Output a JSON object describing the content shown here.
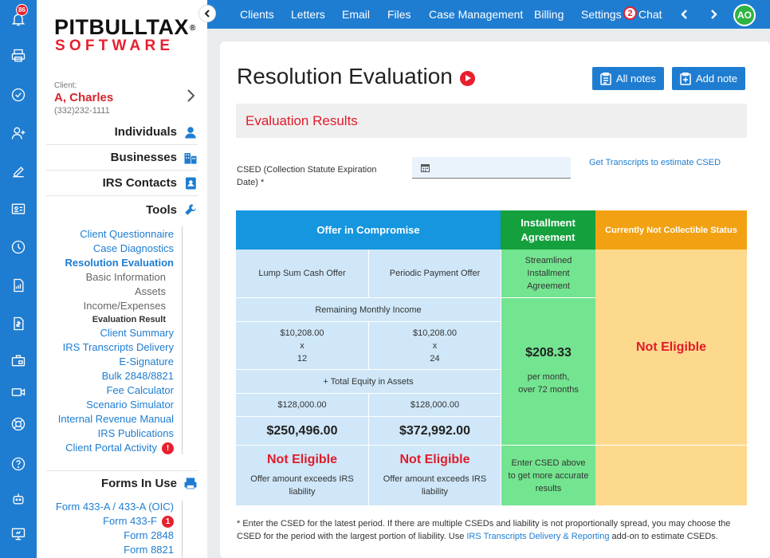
{
  "rail": {
    "notification_count": "86",
    "icons": [
      "bell-icon",
      "printer-icon",
      "check-circle-icon",
      "add-user-icon",
      "pencil-icon",
      "id-card-icon",
      "clock-icon",
      "document-chart-icon",
      "invoice-icon",
      "briefcase-lock-icon",
      "video-icon",
      "lifebuoy-icon",
      "help-icon",
      "robot-icon",
      "monitor-icon"
    ]
  },
  "logo": {
    "line1": "PITBULLTAX",
    "reg": "®",
    "line2": "SOFTWARE"
  },
  "client": {
    "caption": "Client:",
    "name": "A, Charles",
    "phone": "(332)232-1111"
  },
  "sections": {
    "individuals": "Individuals",
    "businesses": "Businesses",
    "irs_contacts": "IRS Contacts",
    "tools": "Tools",
    "forms_in_use": "Forms In Use"
  },
  "tools": [
    "Client Questionnaire",
    "Case Diagnostics",
    "Resolution Evaluation",
    "Basic Information",
    "Assets",
    "Income/Expenses",
    "Evaluation Result",
    "Client Summary",
    "IRS Transcripts Delivery",
    "E-Signature",
    "Bulk 2848/8821",
    "Fee Calculator",
    "Scenario Simulator",
    "Internal Revenue Manual",
    "IRS Publications",
    "Client Portal Activity"
  ],
  "client_portal_alert": "!",
  "forms": [
    "Form 433-A / 433-A (OIC)",
    "Form 433-F",
    "Form 2848",
    "Form 8821"
  ],
  "form_433f_badge": "1",
  "topnav": {
    "items": [
      "Clients",
      "Letters",
      "Email",
      "Files",
      "Case Management",
      "Billing",
      "Settings",
      "Chat"
    ],
    "chat_badge": "2",
    "avatar": "AO"
  },
  "page": {
    "title": "Resolution Evaluation",
    "all_notes": "All notes",
    "add_note": "Add note",
    "section_title": "Evaluation Results",
    "csed_label": "CSED (Collection Statute Expiration Date) *",
    "csed_value": "",
    "csed_link": "Get Transcripts to estimate CSED"
  },
  "evaluation": {
    "headers": {
      "oic": "Offer in Compromise",
      "ia": "Installment Agreement",
      "cnc": "Currently Not Collectible Status"
    },
    "oic": {
      "lump_sum": "Lump Sum Cash Offer",
      "periodic": "Periodic Payment Offer",
      "remaining_income": "Remaining Monthly Income",
      "lump_income": "$10,208.00",
      "lump_x": "x",
      "lump_months": "12",
      "periodic_income": "$10,208.00",
      "periodic_x": "x",
      "periodic_months": "24",
      "total_equity": "+ Total Equity in Assets",
      "lump_equity": "$128,000.00",
      "periodic_equity": "$128,000.00",
      "lump_total": "$250,496.00",
      "periodic_total": "$372,992.00",
      "lump_status": "Not Eligible",
      "periodic_status": "Not Eligible",
      "lump_reason": "Offer amount exceeds IRS liability",
      "periodic_reason": "Offer amount exceeds IRS liability"
    },
    "ia": {
      "type": "Streamlined Installment Agreement",
      "amount": "$208.33",
      "period_line1": "per month,",
      "period_line2": "over 72 months",
      "note": "Enter CSED above to get more accurate results"
    },
    "cnc": {
      "status": "Not Eligible"
    }
  },
  "footnote": {
    "text_before": "* Enter the CSED for the latest period. If there are multiple CSEDs and liability is not proportionally spread, you may choose the CSED for the period with the largest portion of liability. Use ",
    "link": "IRS Transcripts Delivery & Reporting",
    "text_after": " add-on to estimate CSEDs."
  },
  "colors": {
    "brand_blue": "#1f7dd1",
    "red": "#e01b2a",
    "oic_header": "#1596df",
    "ia_header": "#14a03d",
    "cnc_header": "#f2a112"
  }
}
